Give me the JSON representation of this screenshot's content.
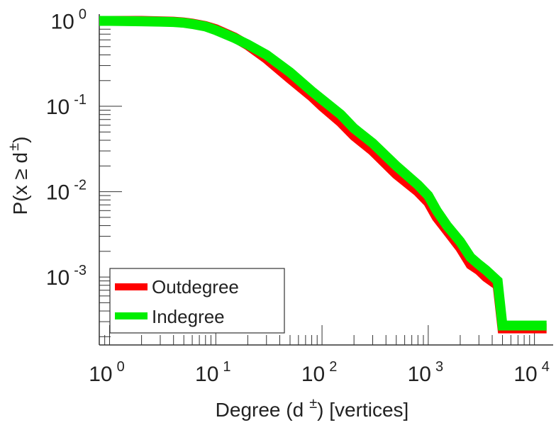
{
  "chart_data": {
    "type": "line",
    "xlabel": {
      "main": "Degree (d",
      "superscript": "±",
      "suffix": ") [vertices]"
    },
    "ylabel": {
      "main": "P(x ≥ d",
      "superscript": "±",
      "suffix": ")"
    },
    "xscale": "log",
    "yscale": "log",
    "xlim": [
      0.8,
      15000
    ],
    "ylim": [
      0.00016,
      1.2
    ],
    "xticks": [
      {
        "base": "10",
        "exp": "0",
        "value": 1
      },
      {
        "base": "10",
        "exp": "1",
        "value": 10
      },
      {
        "base": "10",
        "exp": "2",
        "value": 100
      },
      {
        "base": "10",
        "exp": "3",
        "value": 1000
      },
      {
        "base": "10",
        "exp": "4",
        "value": 10000
      }
    ],
    "yticks": [
      {
        "base": "10",
        "exp": "0",
        "value": 1
      },
      {
        "base": "10",
        "exp": "-1",
        "value": 0.1
      },
      {
        "base": "10",
        "exp": "-2",
        "value": 0.01
      },
      {
        "base": "10",
        "exp": "-3",
        "value": 0.001
      }
    ],
    "grid": false,
    "legend_position": "bottom-left",
    "series": [
      {
        "name": "Outdegree",
        "color": "#ff0000",
        "x": [
          0.8,
          1,
          2,
          3,
          4,
          5,
          6,
          8,
          10,
          15,
          20,
          30,
          50,
          80,
          100,
          150,
          200,
          300,
          500,
          800,
          1000,
          1200,
          1500,
          2000,
          2500,
          3000,
          3500,
          4500,
          5000,
          10000,
          13000
        ],
        "y": [
          1.0,
          1.0,
          1.0,
          0.99,
          0.98,
          0.96,
          0.93,
          0.87,
          0.8,
          0.64,
          0.52,
          0.36,
          0.21,
          0.13,
          0.1,
          0.065,
          0.045,
          0.03,
          0.016,
          0.01,
          0.0075,
          0.005,
          0.0035,
          0.0022,
          0.0014,
          0.0012,
          0.001,
          0.0008,
          0.00025,
          0.00025,
          0.00025
        ]
      },
      {
        "name": "Indegree",
        "color": "#00ee00",
        "x": [
          0.8,
          1,
          2,
          3,
          4,
          5,
          6,
          8,
          10,
          15,
          20,
          30,
          50,
          80,
          100,
          150,
          200,
          300,
          500,
          800,
          1000,
          1200,
          1500,
          2000,
          2500,
          3000,
          3500,
          4500,
          5000,
          10000,
          13000
        ],
        "y": [
          1.0,
          1.0,
          0.99,
          0.98,
          0.97,
          0.95,
          0.92,
          0.86,
          0.78,
          0.63,
          0.53,
          0.4,
          0.25,
          0.15,
          0.12,
          0.08,
          0.055,
          0.037,
          0.02,
          0.012,
          0.009,
          0.006,
          0.004,
          0.0026,
          0.0017,
          0.0014,
          0.0012,
          0.0009,
          0.00027,
          0.00027,
          0.00027
        ]
      }
    ]
  }
}
